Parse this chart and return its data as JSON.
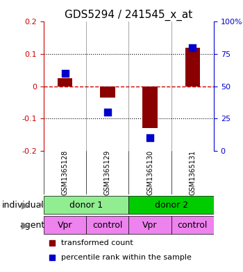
{
  "title": "GDS5294 / 241545_x_at",
  "samples": [
    "GSM1365128",
    "GSM1365129",
    "GSM1365130",
    "GSM1365131"
  ],
  "red_values": [
    0.025,
    -0.035,
    -0.13,
    0.12
  ],
  "blue_percentiles": [
    60,
    30,
    10,
    80
  ],
  "ylim_left": [
    -0.2,
    0.2
  ],
  "ylim_right": [
    0,
    100
  ],
  "yticks_left": [
    -0.2,
    -0.1,
    0,
    0.1,
    0.2
  ],
  "yticks_right": [
    0,
    25,
    50,
    75,
    100
  ],
  "individual_labels": [
    "donor 1",
    "donor 2"
  ],
  "agent_labels": [
    "Vpr",
    "control",
    "Vpr",
    "control"
  ],
  "individual_color_1": "#90EE90",
  "individual_color_2": "#00CC00",
  "agent_color": "#EE82EE",
  "bar_color": "#8B0000",
  "dot_color": "#0000CC",
  "bg_color": "#FFFFFF",
  "grid_color": "#000000",
  "left_axis_color": "#CC0000",
  "right_axis_color": "#0000CC",
  "row_header_bg": "#C0C0C0",
  "title_fontsize": 11,
  "tick_fontsize": 8,
  "label_fontsize": 9,
  "legend_fontsize": 8
}
